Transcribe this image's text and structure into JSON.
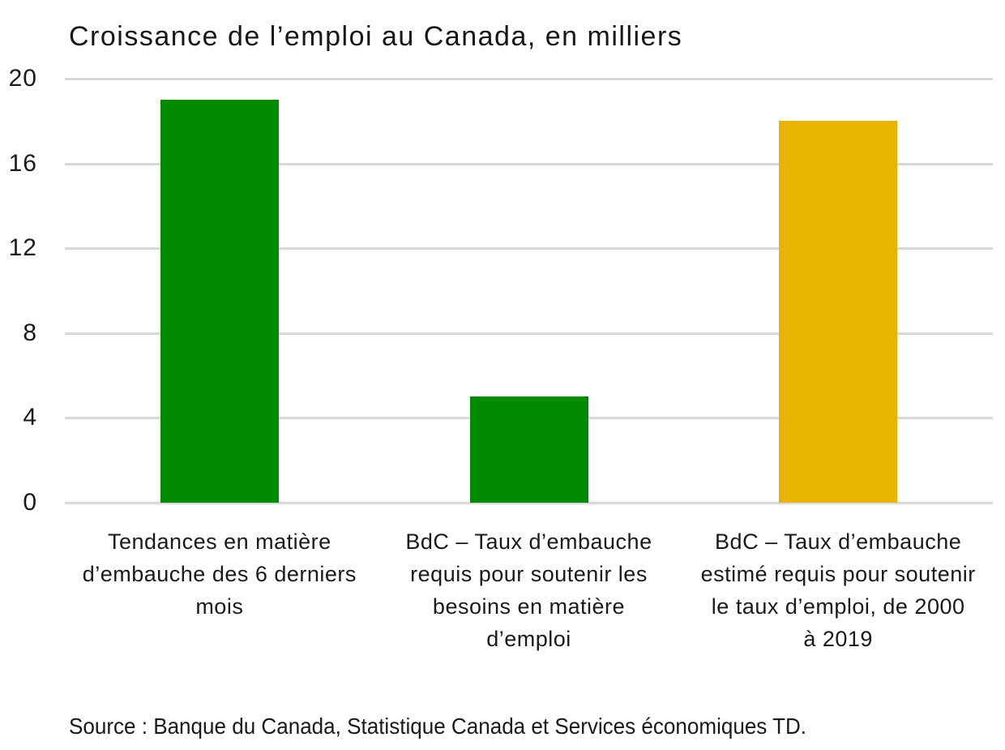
{
  "title": "Croissance de l’emploi au Canada, en milliers",
  "source_note": "Source : Banque du Canada, Statistique Canada et Services économiques TD.",
  "colors": {
    "green": "#008A00",
    "gold": "#E8B400",
    "gridline": "#D9D9D9",
    "text": "#1A1A1A",
    "background": "#FFFFFF"
  },
  "chart_data": {
    "type": "bar",
    "title": "Croissance de l’emploi au Canada, en milliers",
    "categories": [
      "Tendances en matière\nd’embauche des 6 derniers\nmois",
      "BdC – Taux d’embauche\nrequis pour soutenir les\nbesoins en matière\nd’emploi",
      "BdC – Taux d’embauche\nestimé requis pour soutenir\nle taux d’emploi, de 2000\nà 2019"
    ],
    "values": [
      19,
      5,
      18
    ],
    "bar_colors": [
      "#008A00",
      "#008A00",
      "#E8B400"
    ],
    "yticks": [
      0,
      4,
      8,
      12,
      16,
      20
    ],
    "ylim": [
      0,
      20
    ],
    "grid": true,
    "legend": "none",
    "xlabel": "",
    "ylabel": "",
    "annotation": "Source : Banque du Canada, Statistique Canada et Services économiques TD."
  }
}
